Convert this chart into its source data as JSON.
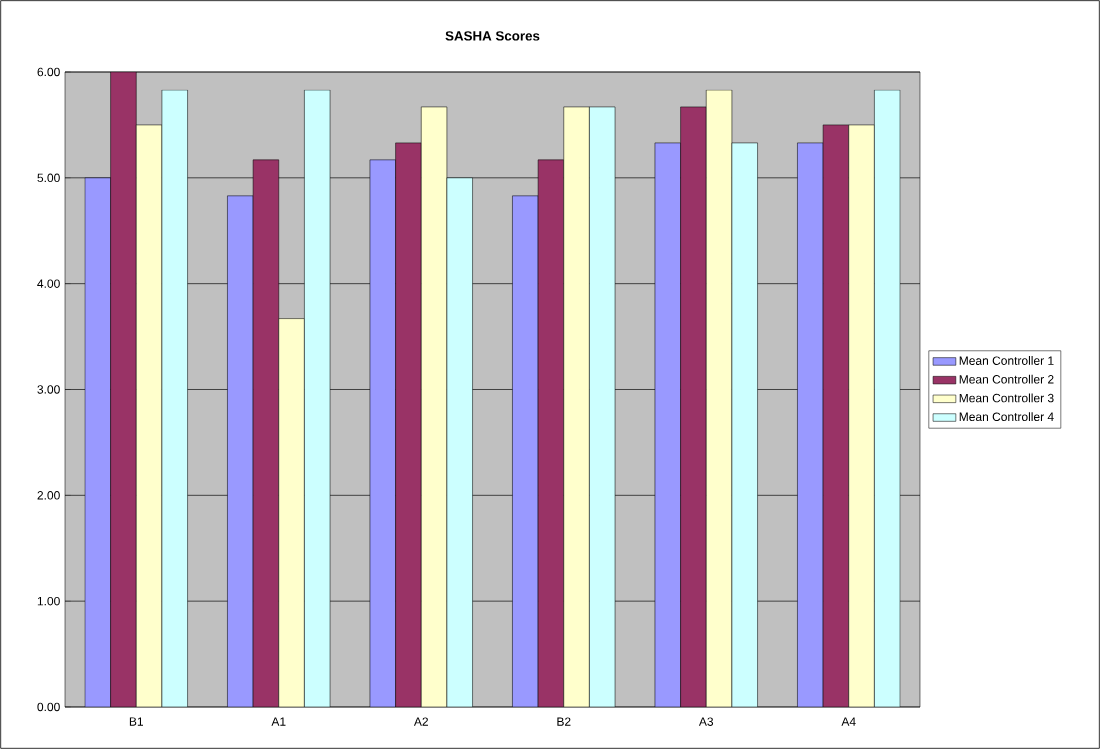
{
  "chart_data": {
    "type": "bar",
    "title": "SASHA Scores",
    "categories": [
      "B1",
      "A1",
      "A2",
      "B2",
      "A3",
      "A4"
    ],
    "series": [
      {
        "name": "Mean Controller 1",
        "color": "#9999ff",
        "values": [
          5.0,
          4.83,
          5.17,
          4.83,
          5.33,
          5.33
        ]
      },
      {
        "name": "Mean Controller 2",
        "color": "#993366",
        "values": [
          6.0,
          5.17,
          5.33,
          5.17,
          5.67,
          5.5
        ]
      },
      {
        "name": "Mean Controller 3",
        "color": "#ffffcc",
        "values": [
          5.5,
          3.67,
          5.67,
          5.67,
          5.83,
          5.5
        ]
      },
      {
        "name": "Mean Controller 4",
        "color": "#ccffff",
        "values": [
          5.83,
          5.83,
          5.0,
          5.67,
          5.33,
          5.83
        ]
      }
    ],
    "ylim": [
      0,
      6
    ],
    "yticks": [
      {
        "value": 0,
        "label": "0.00"
      },
      {
        "value": 1,
        "label": "1.00"
      },
      {
        "value": 2,
        "label": "2.00"
      },
      {
        "value": 3,
        "label": "3.00"
      },
      {
        "value": 4,
        "label": "4.00"
      },
      {
        "value": 5,
        "label": "5.00"
      },
      {
        "value": 6,
        "label": "6.00"
      }
    ],
    "grid": "y",
    "legend": "right"
  }
}
